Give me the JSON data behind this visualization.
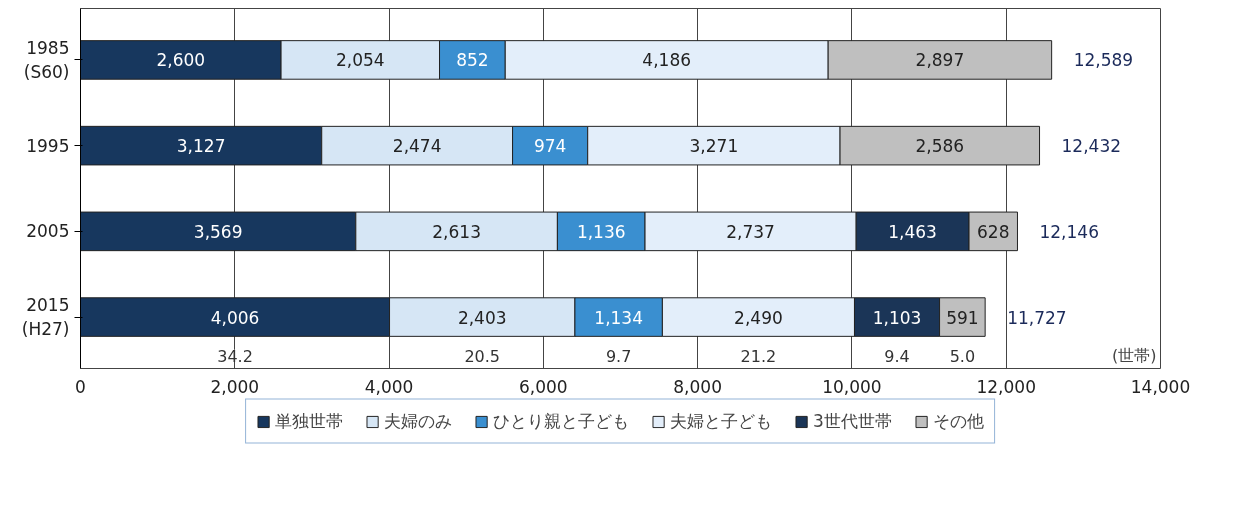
{
  "chart_data": {
    "type": "bar",
    "orientation": "horizontal",
    "stacked": true,
    "categories": [
      "1985\n(S60)",
      "1995",
      "2005",
      "2015\n(H27)"
    ],
    "series": [
      {
        "name": "単独世帯",
        "color": "#17375e",
        "values": [
          2600,
          3127,
          3569,
          4006
        ],
        "value_labels": [
          "2,600",
          "3,127",
          "3,569",
          "4,006"
        ]
      },
      {
        "name": "夫婦のみ",
        "color": "#d6e6f5",
        "values": [
          2054,
          2474,
          2613,
          2403
        ],
        "value_labels": [
          "2,054",
          "2,474",
          "2,613",
          "2,403"
        ]
      },
      {
        "name": "ひとり親と子ども",
        "color": "#3a8fd0",
        "values": [
          852,
          974,
          1136,
          1134
        ],
        "value_labels": [
          "852",
          "974",
          "1,136",
          "1,134"
        ]
      },
      {
        "name": "夫婦と子ども",
        "color": "#e3eefa",
        "values": [
          4186,
          3271,
          2737,
          2490
        ],
        "value_labels": [
          "4,186",
          "3,271",
          "2,737",
          "2,490"
        ]
      },
      {
        "name": "3世代世帯",
        "color": "#1b3557",
        "values": [
          null,
          null,
          1463,
          1103
        ],
        "value_labels": [
          null,
          null,
          "1,463",
          "1,103"
        ]
      },
      {
        "name": "その他",
        "color": "#bfbfbf",
        "values": [
          2897,
          2586,
          628,
          591
        ],
        "value_labels": [
          "2,897",
          "2,586",
          "628",
          "591"
        ]
      }
    ],
    "totals": [
      "12,589",
      "12,432",
      "12,146",
      "11,727"
    ],
    "annotations": [
      "34.2",
      "20.5",
      "9.7",
      "21.2",
      "9.4",
      "5.0"
    ],
    "xlabel": "(世帯)",
    "xlim": [
      0,
      14000
    ],
    "xticks": [
      0,
      {
        "value": 2000,
        "label": "2,000"
      },
      {
        "value": 4000,
        "label": "4,000"
      },
      {
        "value": 6000,
        "label": "6,000"
      },
      {
        "value": 8000,
        "label": "8,000"
      },
      {
        "value": 10000,
        "label": "10,000"
      },
      {
        "value": 12000,
        "label": "12,000"
      },
      {
        "value": 14000,
        "label": "14,000"
      }
    ],
    "grid": "x",
    "legend": "bottom"
  }
}
